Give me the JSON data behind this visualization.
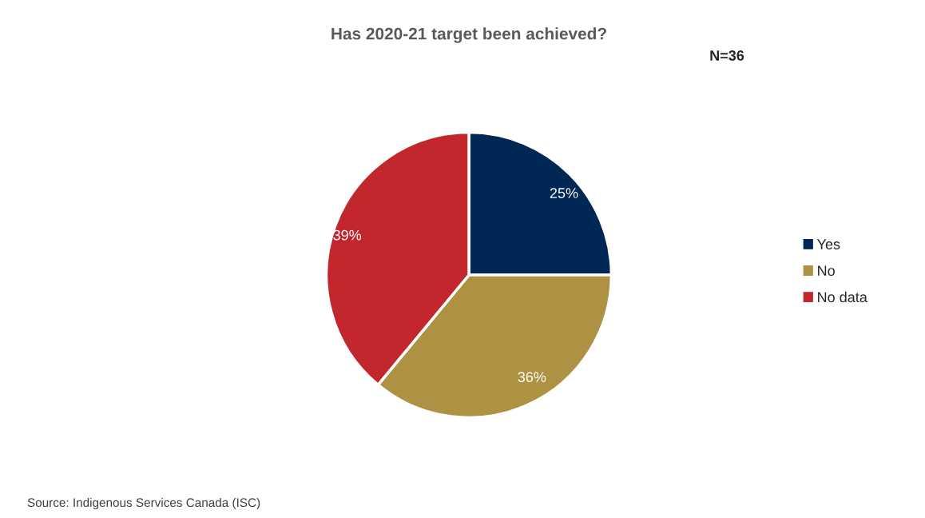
{
  "chart_data": {
    "type": "pie",
    "title": "Has 2020-21 target been achieved?",
    "categories": [
      "Yes",
      "No",
      "No data"
    ],
    "values": [
      25,
      36,
      39
    ],
    "value_labels": [
      "25%",
      "36%",
      "39%"
    ],
    "colors": [
      "#002855",
      "#ae9142",
      "#c1272d"
    ],
    "legend": "right",
    "annotations": [
      "N=36",
      "Source: Indigenous Services Canada (ISC)"
    ]
  }
}
